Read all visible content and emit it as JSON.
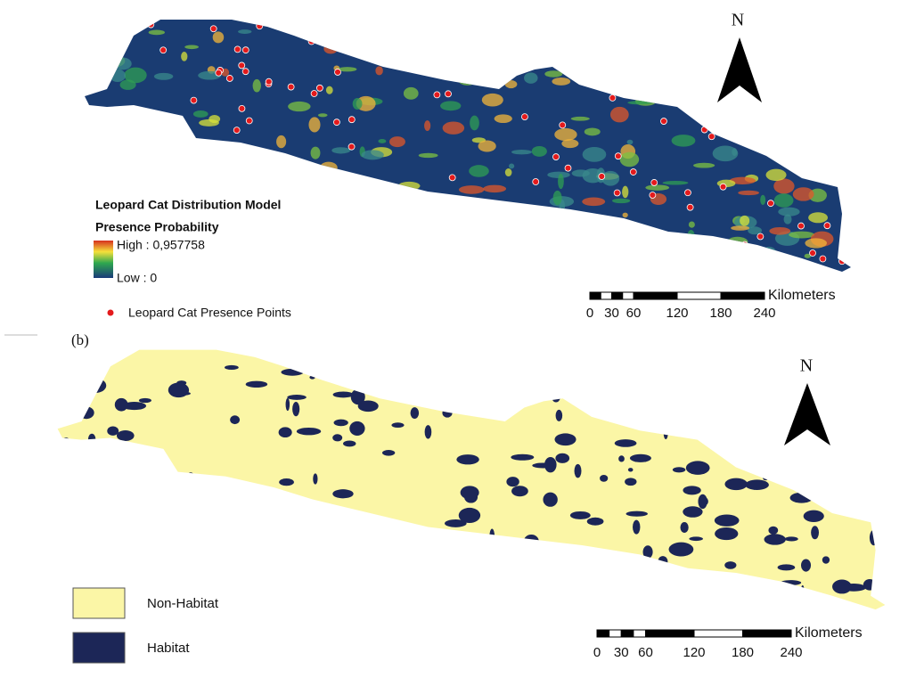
{
  "map_a": {
    "north": "N",
    "legend": {
      "title": "Leopard Cat Distribution Model",
      "subtitle": "Presence Probability",
      "high": "High : 0,957758",
      "low": "Low : 0",
      "points": "Leopard Cat Presence Points"
    },
    "scale": {
      "unit": "Kilometers",
      "ticks": [
        0,
        30,
        60,
        120,
        180,
        240
      ]
    }
  },
  "map_b": {
    "label": "(b)",
    "north": "N",
    "legend": [
      {
        "label": "Non-Habitat",
        "color": "#fbf6a6"
      },
      {
        "label": "Habitat",
        "color": "#1c2657"
      }
    ],
    "scale": {
      "unit": "Kilometers",
      "ticks": [
        0,
        30,
        60,
        120,
        180,
        240
      ]
    }
  }
}
